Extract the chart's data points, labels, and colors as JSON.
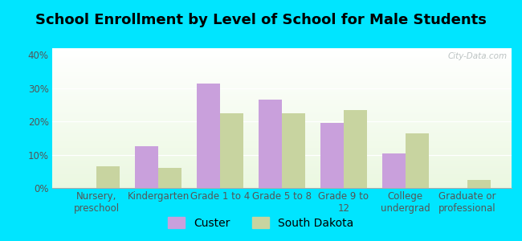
{
  "title": "School Enrollment by Level of School for Male Students",
  "categories": [
    "Nursery,\npreschool",
    "Kindergarten",
    "Grade 1 to 4",
    "Grade 5 to 8",
    "Grade 9 to\n12",
    "College\nundergrad",
    "Graduate or\nprofessional"
  ],
  "custer": [
    0,
    12.5,
    31.5,
    26.5,
    19.5,
    10.5,
    0
  ],
  "south_dakota": [
    6.5,
    6.0,
    22.5,
    22.5,
    23.5,
    16.5,
    2.5
  ],
  "custer_color": "#c9a0dc",
  "sd_color": "#c8d4a0",
  "ylim": [
    0,
    42
  ],
  "yticks": [
    0,
    10,
    20,
    30,
    40
  ],
  "ytick_labels": [
    "0%",
    "10%",
    "20%",
    "30%",
    "40%"
  ],
  "bg_color": "#00e5ff",
  "bar_width": 0.38,
  "legend_labels": [
    "Custer",
    "South Dakota"
  ],
  "watermark": "City-Data.com",
  "title_fontsize": 13,
  "tick_fontsize": 8.5,
  "legend_fontsize": 10
}
